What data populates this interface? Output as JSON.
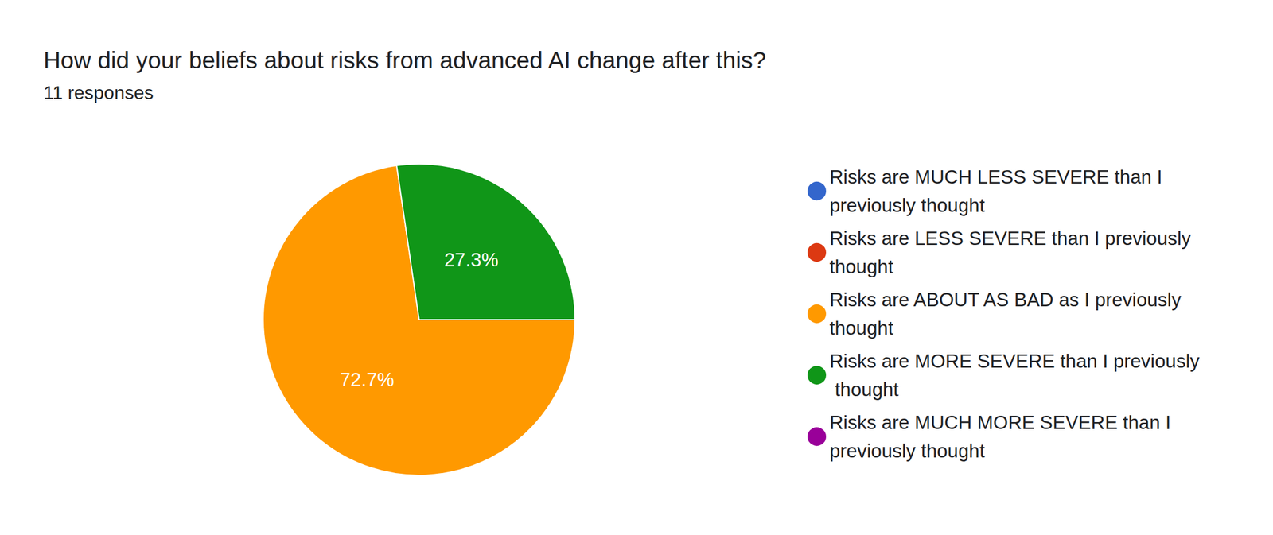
{
  "chart_data": {
    "type": "pie",
    "title": "How did your beliefs about risks from advanced AI change after this?",
    "subtitle": "11 responses",
    "categories": [
      "Risks are MUCH LESS SEVERE than I previously thought",
      "Risks are LESS SEVERE than I previously thought",
      "Risks are ABOUT AS BAD as I previously thought",
      "Risks are MORE SEVERE than I previously thought",
      "Risks are MUCH MORE SEVERE than I previously thought"
    ],
    "values": [
      0,
      0,
      72.7,
      27.3,
      0
    ],
    "value_labels": [
      null,
      null,
      "72.7%",
      "27.3%",
      null
    ],
    "colors": [
      "#3366cc",
      "#dc3912",
      "#ff9900",
      "#109618",
      "#990099"
    ],
    "data_labels": true,
    "legend": "right"
  }
}
